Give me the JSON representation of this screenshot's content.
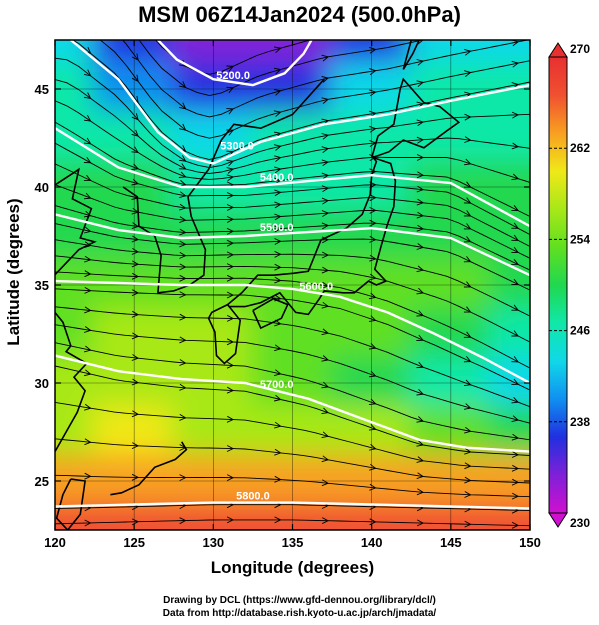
{
  "chart_data": {
    "type": "heatmap",
    "title": "MSM 06Z14Jan2024 (500.0hPa)",
    "xlabel": "Longitude (degrees)",
    "ylabel": "Latitude  (degrees)",
    "xlim": [
      120,
      150
    ],
    "ylim": [
      22.5,
      47.5
    ],
    "x_ticks": [
      120,
      125,
      130,
      135,
      140,
      145,
      150
    ],
    "x_tick_labels": [
      "120",
      "125",
      "130",
      "135",
      "140",
      "145",
      "150"
    ],
    "y_ticks": [
      25,
      30,
      35,
      40,
      45
    ],
    "y_tick_labels": [
      "25",
      "30",
      "35",
      "40",
      "45"
    ],
    "colorbar": {
      "range": [
        230,
        270
      ],
      "ticks": [
        230,
        238,
        246,
        254,
        262,
        270
      ],
      "tick_labels": [
        "230",
        "238",
        "246",
        "254",
        "262",
        "270"
      ],
      "colors": [
        "#d010d0",
        "#8020d8",
        "#2030e0",
        "#1090f0",
        "#10d8e8",
        "#10e8a8",
        "#20d850",
        "#60e020",
        "#a8e818",
        "#f0e818",
        "#f8a020",
        "#f05030",
        "#e83030"
      ]
    },
    "temperature_field_K": {
      "lons": [
        120,
        125,
        130,
        135,
        140,
        145,
        150
      ],
      "lats": [
        47.5,
        45,
        42.5,
        40,
        37.5,
        35,
        32.5,
        30,
        27.5,
        25,
        22.5
      ],
      "values": [
        [
          243,
          237,
          232,
          233,
          238,
          242,
          244
        ],
        [
          245,
          240,
          236,
          238,
          242,
          245,
          246
        ],
        [
          248,
          246,
          244,
          245,
          246,
          247,
          248
        ],
        [
          250,
          249,
          248,
          248,
          248,
          249,
          249
        ],
        [
          251,
          251,
          251,
          251,
          251,
          251,
          251
        ],
        [
          252,
          253,
          253,
          253,
          253,
          252,
          250
        ],
        [
          254,
          255,
          255,
          254,
          253,
          250,
          246
        ],
        [
          256,
          257,
          256,
          254,
          250,
          246,
          243
        ],
        [
          258,
          259,
          258,
          257,
          255,
          252,
          250
        ],
        [
          264,
          264,
          264,
          264,
          264,
          263,
          262
        ],
        [
          266,
          267,
          267,
          267,
          267,
          267,
          266
        ]
      ]
    },
    "height_contours_m": [
      {
        "label": "5200.0",
        "lons": [
          126.5,
          127.7,
          130,
          132.5,
          134.5,
          135.7,
          136.2
        ],
        "lats": [
          47.5,
          46.5,
          45.5,
          45.2,
          45.8,
          46.8,
          47.5
        ]
      },
      {
        "label": "5300.0",
        "lons": [
          121,
          124,
          126.5,
          128.5,
          130,
          133,
          137,
          141,
          145,
          150
        ],
        "lats": [
          47.5,
          45.5,
          42.8,
          41.5,
          41.2,
          42.3,
          43.2,
          43.7,
          44.4,
          45.2
        ]
      },
      {
        "label": "5400.0",
        "lons": [
          120,
          124,
          128,
          132,
          136,
          140,
          145,
          150
        ],
        "lats": [
          43.0,
          41.0,
          40.0,
          40.0,
          40.3,
          40.6,
          40.2,
          38.0
        ]
      },
      {
        "label": "5500.0",
        "lons": [
          120,
          124,
          128,
          132,
          136,
          140,
          145,
          150
        ],
        "lats": [
          38.6,
          37.8,
          37.4,
          37.5,
          37.7,
          37.9,
          37.4,
          35.5
        ]
      },
      {
        "label": "5600.0",
        "lons": [
          120,
          124,
          128,
          132,
          135,
          138,
          141,
          144,
          147,
          150
        ],
        "lats": [
          35.2,
          35.1,
          35.0,
          35.0,
          34.8,
          34.4,
          33.6,
          32.5,
          31.3,
          30.0
        ]
      },
      {
        "label": "5700.0",
        "lons": [
          120,
          124,
          128,
          132,
          136,
          140,
          143,
          146,
          150
        ],
        "lats": [
          31.4,
          30.6,
          30.2,
          30.0,
          29.2,
          28.0,
          27.1,
          26.7,
          26.5
        ]
      },
      {
        "label": "5800.0",
        "lons": [
          120,
          125,
          130,
          135,
          140,
          145,
          150
        ],
        "lats": [
          23.7,
          23.8,
          23.9,
          23.9,
          23.8,
          23.7,
          23.6
        ]
      }
    ],
    "coastline": [
      {
        "name": "japan-honshu",
        "lons": [
          130.9,
          131.8,
          132.8,
          133.8,
          135.1,
          136.0,
          136.8,
          138.4,
          139.4,
          139.9,
          140.0,
          140.3,
          140.1,
          141.2,
          141.5,
          141.4,
          141.0,
          140.6,
          140.2,
          140.9,
          140.3,
          139.8,
          138.9,
          138.2,
          137.0,
          136.7,
          136.0,
          135.2,
          134.2,
          133.0,
          132.0,
          131.0,
          130.9
        ],
        "lats": [
          34.0,
          34.6,
          35.5,
          35.5,
          35.6,
          35.7,
          37.3,
          37.9,
          38.6,
          39.6,
          40.6,
          41.3,
          41.5,
          41.2,
          40.3,
          39.0,
          38.1,
          37.0,
          35.8,
          35.2,
          35.0,
          35.2,
          34.6,
          34.6,
          34.7,
          34.3,
          33.5,
          33.6,
          34.6,
          34.1,
          33.9,
          33.9,
          34.0
        ]
      },
      {
        "name": "japan-kyushu",
        "lons": [
          130.9,
          131.7,
          131.4,
          130.7,
          130.2,
          130.1,
          129.7,
          129.9,
          130.9
        ],
        "lats": [
          34.0,
          33.2,
          31.5,
          31.0,
          31.4,
          32.6,
          33.3,
          33.6,
          34.0
        ]
      },
      {
        "name": "japan-shikoku",
        "lons": [
          132.5,
          133.8,
          134.7,
          134.3,
          133.0,
          132.5
        ],
        "lats": [
          33.7,
          34.3,
          34.0,
          33.3,
          32.8,
          33.7
        ]
      },
      {
        "name": "japan-hokkaido",
        "lons": [
          140.0,
          140.4,
          141.4,
          141.8,
          142.0,
          143.3,
          144.3,
          145.5,
          144.8,
          143.3,
          142.0,
          141.1,
          140.4,
          140.0
        ],
        "lats": [
          41.5,
          42.6,
          43.2,
          45.0,
          45.5,
          44.3,
          44.1,
          43.3,
          42.9,
          42.0,
          42.4,
          41.8,
          41.6,
          41.5
        ]
      },
      {
        "name": "sakhalin",
        "lons": [
          142.0,
          142.6,
          143.0,
          142.5,
          142.0
        ],
        "lats": [
          46.0,
          46.8,
          47.5,
          47.5,
          46.0
        ]
      },
      {
        "name": "korea",
        "lons": [
          124.3,
          125.2,
          125.3,
          126.3,
          126.7,
          126.5,
          127.5,
          128.5,
          129.4,
          129.5,
          128.6,
          128.4,
          129.7,
          130.5
        ],
        "lats": [
          40.0,
          39.5,
          38.0,
          37.5,
          36.5,
          34.6,
          34.7,
          35.0,
          35.5,
          36.8,
          38.5,
          39.5,
          40.9,
          42.4
        ]
      },
      {
        "name": "china-coast",
        "lons": [
          130.5,
          131.3,
          133.0,
          135.0,
          137.0
        ],
        "lats": [
          42.4,
          43.2,
          43.0,
          43.7,
          45.5
        ]
      },
      {
        "name": "china-mainland",
        "lons": [
          120.0,
          121.5,
          121.1,
          122.3,
          121.6,
          122.5,
          121.5,
          119.5,
          119.2,
          120.5,
          121.0,
          120.7,
          122.0,
          121.2,
          121.9,
          121.4,
          120.0
        ],
        "lats": [
          40.1,
          40.9,
          39.4,
          38.9,
          37.4,
          37.2,
          36.8,
          35.1,
          34.4,
          33.1,
          31.9,
          31.6,
          31.0,
          30.3,
          29.6,
          28.5,
          26.5
        ]
      },
      {
        "name": "taiwan",
        "lons": [
          121.0,
          121.9,
          121.6,
          120.8,
          120.1,
          120.5,
          121.0
        ],
        "lats": [
          25.1,
          25.0,
          23.3,
          22.5,
          23.1,
          24.3,
          25.1
        ]
      },
      {
        "name": "ryukyu",
        "lons": [
          128.0,
          128.3,
          127.6,
          126.3,
          125.3,
          124.2,
          123.5
        ],
        "lats": [
          27.0,
          26.6,
          26.1,
          25.7,
          24.8,
          24.4,
          24.3
        ]
      }
    ]
  }
}
